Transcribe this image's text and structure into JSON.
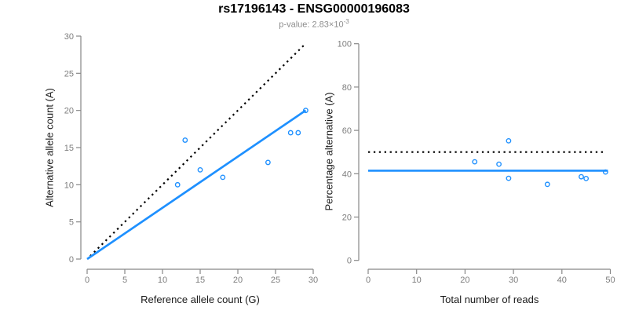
{
  "header": {
    "title": "rs17196143 - ENSG00000196083",
    "subtitle_main": "p-value: 2.83×10",
    "subtitle_exponent": "-3"
  },
  "style": {
    "accent_blue": "#1E90FF",
    "line_black": "#000000",
    "axis_color": "#878787",
    "tick_label_color": "#7d7d7d",
    "axis_title_color": "#1a1a1a",
    "title_color": "#000000",
    "subtitle_color": "#8e8e8e",
    "background": "#ffffff"
  },
  "chart_data": [
    {
      "name": "allele-counts-scatter",
      "type": "scatter",
      "title": "",
      "xlabel": "Reference allele count (G)",
      "ylabel": "Alternative allele count (A)",
      "xlim": [
        0,
        30
      ],
      "ylim": [
        0,
        30
      ],
      "xticks": [
        0,
        5,
        10,
        15,
        20,
        25,
        30
      ],
      "yticks": [
        0,
        5,
        10,
        15,
        20,
        25,
        30
      ],
      "grid": false,
      "legend": "none",
      "point_color": "#1E90FF",
      "points": [
        [
          12,
          10
        ],
        [
          13,
          16
        ],
        [
          15,
          12
        ],
        [
          18,
          11
        ],
        [
          24,
          13
        ],
        [
          27,
          17
        ],
        [
          28,
          17
        ],
        [
          29,
          20
        ]
      ],
      "lines": [
        {
          "name": "identity-line",
          "style": "dotted",
          "color": "#000000",
          "x1": 0.4,
          "y1": 0.4,
          "x2": 28.9,
          "y2": 28.9
        },
        {
          "name": "fit-line",
          "style": "solid",
          "color": "#1E90FF",
          "x1": 0,
          "y1": 0,
          "x2": 29,
          "y2": 20
        }
      ]
    },
    {
      "name": "percentage-scatter",
      "type": "scatter",
      "title": "",
      "xlabel": "Total number of reads",
      "ylabel": "Percentage alternative (A)",
      "xlim": [
        0,
        50
      ],
      "ylim": [
        0,
        100
      ],
      "xticks": [
        0,
        10,
        20,
        30,
        40,
        50
      ],
      "yticks": [
        0,
        20,
        40,
        60,
        80,
        100
      ],
      "grid": false,
      "legend": "none",
      "point_color": "#1E90FF",
      "points": [
        [
          22,
          45.5
        ],
        [
          27,
          44.4
        ],
        [
          29,
          55.2
        ],
        [
          29,
          37.9
        ],
        [
          37,
          35.1
        ],
        [
          44,
          38.6
        ],
        [
          45,
          37.8
        ],
        [
          49,
          40.8
        ]
      ],
      "lines": [
        {
          "name": "reference-50pct-line",
          "style": "dotted",
          "color": "#000000",
          "x1": 0,
          "y1": 50,
          "x2": 49,
          "y2": 50
        },
        {
          "name": "fit-line",
          "style": "solid",
          "color": "#1E90FF",
          "x1": 0,
          "y1": 41.4,
          "x2": 49.5,
          "y2": 41.4
        }
      ]
    }
  ]
}
